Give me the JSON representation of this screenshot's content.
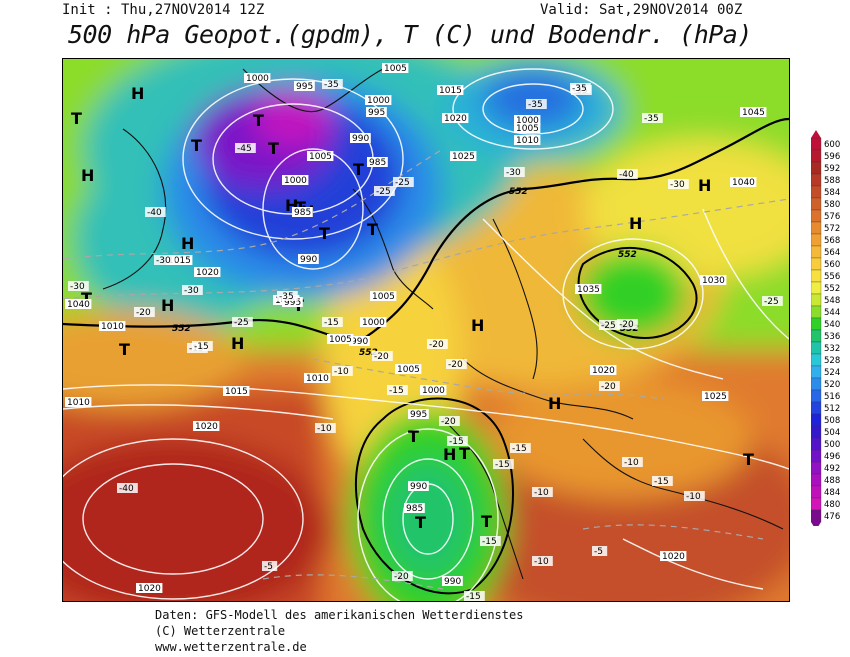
{
  "header": {
    "init": "Init : Thu,27NOV2014 12Z",
    "valid": "Valid: Sat,29NOV2014 00Z",
    "title": "500 hPa Geopot.(gpdm), T (C) und Bodendr. (hPa)"
  },
  "legend": {
    "values": [
      "600",
      "596",
      "592",
      "588",
      "584",
      "580",
      "576",
      "572",
      "568",
      "564",
      "560",
      "556",
      "552",
      "548",
      "544",
      "540",
      "536",
      "532",
      "528",
      "524",
      "520",
      "516",
      "512",
      "508",
      "504",
      "500",
      "496",
      "492",
      "488",
      "484",
      "480",
      "476"
    ],
    "colors": [
      "#c0103a",
      "#b71a2e",
      "#a82a22",
      "#b83a26",
      "#c44c28",
      "#d0602a",
      "#dc722c",
      "#e88a2e",
      "#f0a032",
      "#f6b838",
      "#f8cc3c",
      "#f8e040",
      "#f0ee40",
      "#c8e834",
      "#8cdc2c",
      "#30d028",
      "#20c46a",
      "#20c4a8",
      "#28c8d8",
      "#30b0ec",
      "#2c8cec",
      "#2868e8",
      "#2444e0",
      "#2024d8",
      "#3418cc",
      "#5214c8",
      "#7212c8",
      "#9012c4",
      "#aa10c0",
      "#c010bc",
      "#d214b8",
      "#780c8c"
    ]
  },
  "map": {
    "systems": [
      {
        "label": "H",
        "name": "high-center"
      },
      {
        "label": "H",
        "name": "high-center"
      },
      {
        "label": "H",
        "name": "high-center"
      },
      {
        "label": "H",
        "name": "high-center"
      },
      {
        "label": "H",
        "name": "high-center"
      },
      {
        "label": "H",
        "name": "high-center"
      },
      {
        "label": "H",
        "name": "high-center"
      },
      {
        "label": "H",
        "name": "high-center"
      },
      {
        "label": "H",
        "name": "high-center"
      },
      {
        "label": "H",
        "name": "high-center"
      },
      {
        "label": "H",
        "name": "high-center"
      },
      {
        "label": "H",
        "name": "high-center"
      },
      {
        "label": "T",
        "name": "low-center"
      },
      {
        "label": "T",
        "name": "low-center"
      },
      {
        "label": "T",
        "name": "low-center"
      },
      {
        "label": "T",
        "name": "low-center"
      },
      {
        "label": "T",
        "name": "low-center"
      },
      {
        "label": "T",
        "name": "low-center"
      },
      {
        "label": "T",
        "name": "low-center"
      },
      {
        "label": "T",
        "name": "low-center"
      },
      {
        "label": "T",
        "name": "low-center"
      },
      {
        "label": "T",
        "name": "low-center"
      },
      {
        "label": "T",
        "name": "low-center"
      },
      {
        "label": "T",
        "name": "low-center"
      },
      {
        "label": "T",
        "name": "low-center"
      },
      {
        "label": "T",
        "name": "low-center"
      },
      {
        "label": "T",
        "name": "low-center"
      },
      {
        "label": "T",
        "name": "low-center"
      }
    ],
    "pressure_labels": [
      "1000",
      "995",
      "1005",
      "1000",
      "995",
      "1015",
      "1020",
      "1000",
      "1005",
      "1010",
      "1045",
      "1040",
      "990",
      "1005",
      "985",
      "1000",
      "1025",
      "985",
      "990",
      "1015",
      "1020",
      "1000",
      "1040",
      "1010",
      "1005",
      "995",
      "1030",
      "990",
      "1000",
      "1005",
      "1035",
      "1010",
      "1005",
      "1015",
      "1010",
      "1000",
      "1020",
      "1020",
      "995",
      "1025",
      "990",
      "985",
      "990",
      "1020",
      "1020"
    ],
    "geopot_labels": [
      "552",
      "552",
      "552",
      "552",
      "552"
    ],
    "temp_labels": [
      "-35",
      "-35",
      "-35",
      "-35",
      "-35",
      "-45",
      "-25",
      "-40",
      "-30",
      "-30",
      "-30",
      "-40",
      "-25",
      "-30",
      "-30",
      "-35",
      "-20",
      "-15",
      "-25",
      "-15",
      "-25",
      "-20",
      "-20",
      "-20",
      "-25",
      "-15",
      "-15",
      "-20",
      "-10",
      "-20",
      "-20",
      "-10",
      "-15",
      "-15",
      "-15",
      "-10",
      "-40",
      "-10",
      "-10",
      "-5",
      "-10",
      "-15",
      "-20",
      "-15",
      "-5",
      "-15"
    ]
  },
  "credits": {
    "line1": "Daten: GFS-Modell des amerikanischen Wetterdienstes",
    "line2": "(C) Wetterzentrale",
    "line3": "www.wetterzentrale.de"
  }
}
